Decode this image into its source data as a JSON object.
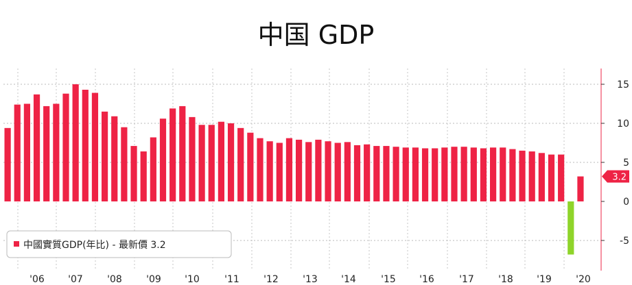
{
  "chart_data": {
    "type": "bar",
    "title": "中国 GDP",
    "series": [
      {
        "name": "中國實質GDP(年比) - 最新價 3.2",
        "values": [
          9.4,
          12.4,
          12.5,
          13.7,
          12.2,
          12.5,
          13.8,
          15.0,
          14.3,
          13.9,
          11.5,
          10.9,
          9.5,
          7.1,
          6.4,
          8.2,
          10.6,
          11.9,
          12.2,
          10.8,
          9.8,
          9.8,
          10.2,
          10.0,
          9.4,
          8.8,
          8.1,
          7.7,
          7.5,
          8.1,
          7.9,
          7.6,
          7.9,
          7.7,
          7.5,
          7.6,
          7.2,
          7.3,
          7.1,
          7.1,
          7.0,
          6.9,
          6.9,
          6.8,
          6.8,
          6.9,
          7.0,
          7.0,
          6.9,
          6.8,
          6.9,
          6.9,
          6.7,
          6.5,
          6.4,
          6.2,
          6.0,
          6.0,
          -6.8,
          3.2
        ]
      }
    ],
    "x_tick_labels": [
      "'06",
      "'07",
      "'08",
      "'09",
      "'10",
      "'11",
      "'12",
      "'13",
      "'14",
      "'15",
      "'16",
      "'17",
      "'18",
      "'19",
      "'20"
    ],
    "y_ticks": [
      15,
      10,
      5,
      0,
      -5
    ],
    "ylim": [
      -7.5,
      17
    ],
    "last_value_label": "3.2",
    "legend": {
      "position": "bottom-left"
    },
    "colors": {
      "positive": "#ee2345",
      "negative": "#8fd42a",
      "last_value_badge": "#ee2345"
    }
  }
}
